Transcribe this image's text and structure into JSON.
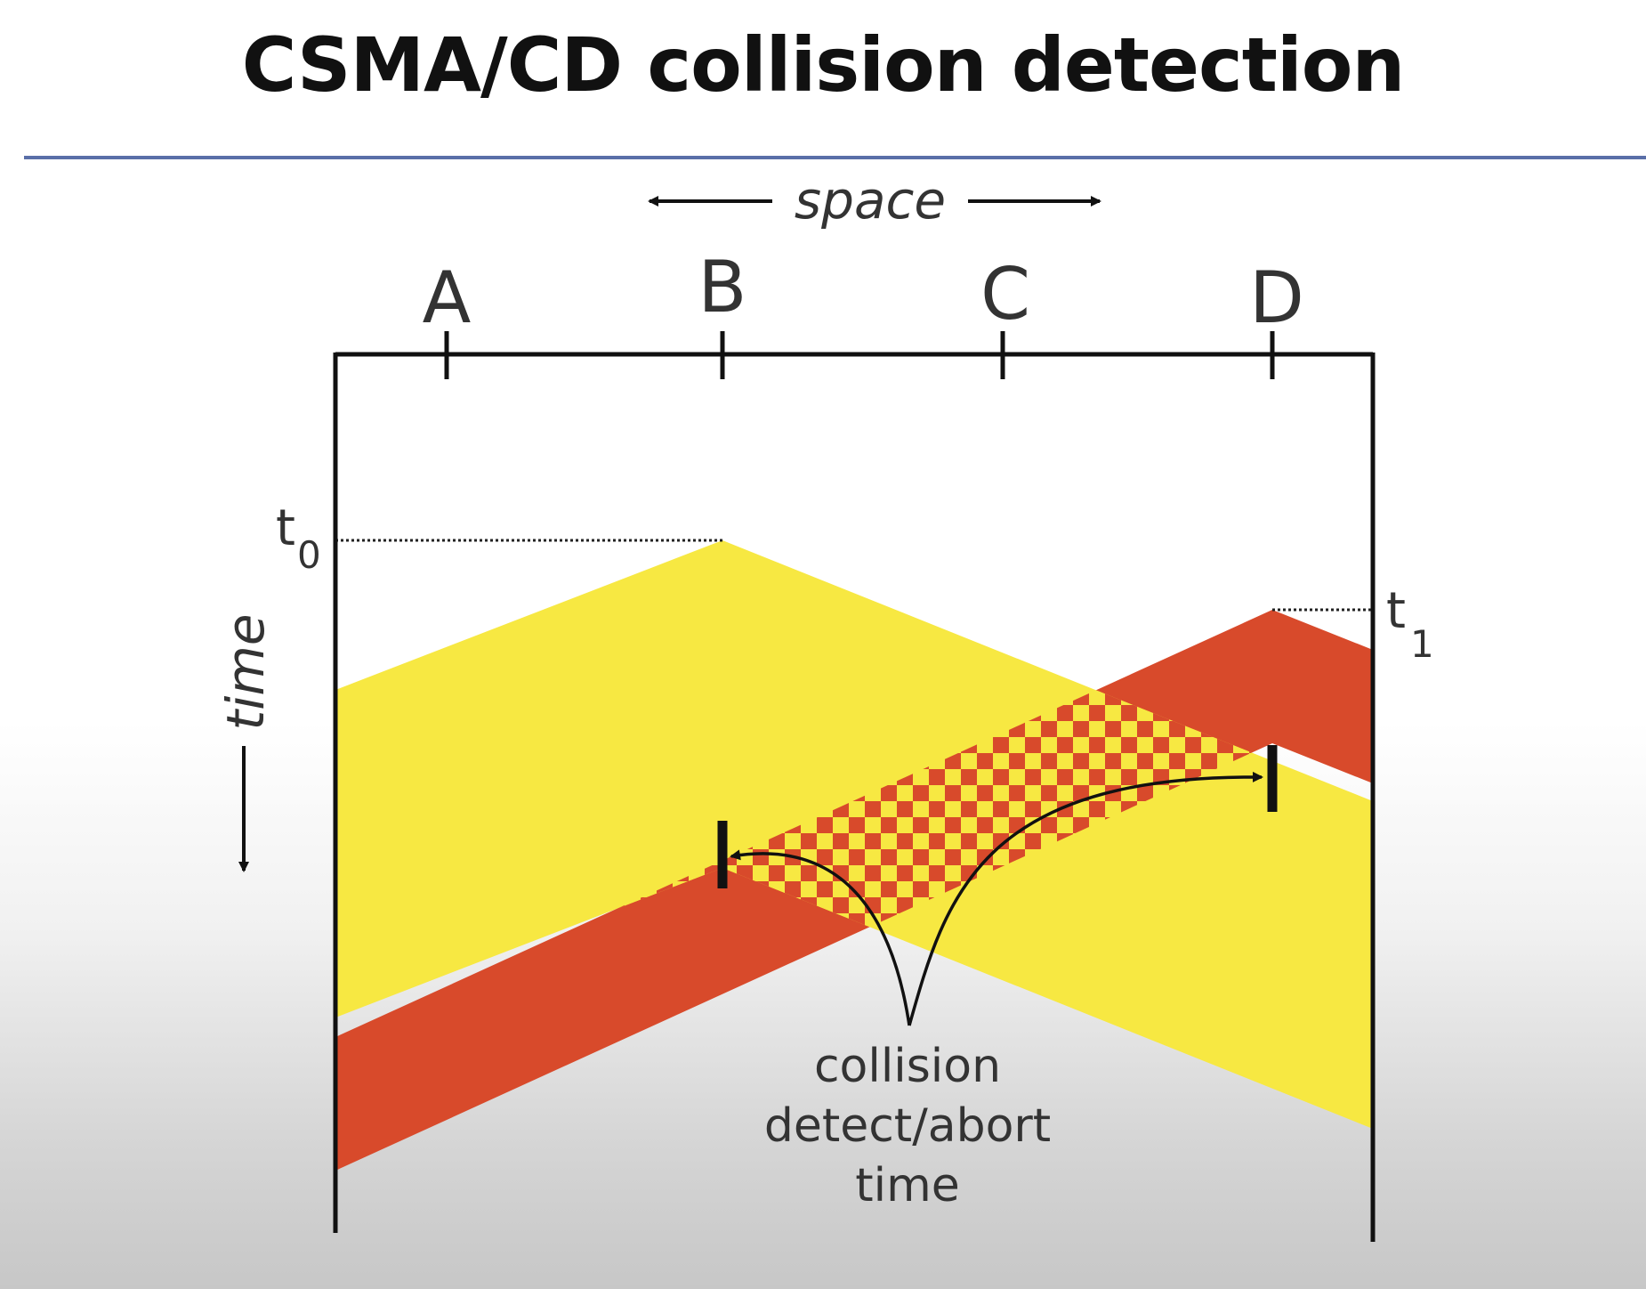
{
  "slide": {
    "title": "CSMA/CD collision detection"
  },
  "diagram": {
    "space_label": "space",
    "time_label": "time",
    "nodes": [
      {
        "label": "A",
        "color": "#1d1d6e"
      },
      {
        "label": "B",
        "color": "#f4ea3a"
      },
      {
        "label": "C",
        "color": "#1e7a56"
      },
      {
        "label": "D",
        "color": "#c8402a"
      }
    ],
    "t0_label": "t",
    "t0_sub": "0",
    "t1_label": "t",
    "t1_sub": "1",
    "annotation": [
      "collision",
      "detect/abort",
      "time"
    ],
    "colors": {
      "yellow_transmission": "#f7e842",
      "red_transmission": "#d84a2b",
      "axis": "#111111",
      "title_rule": "#5a6fa8"
    }
  }
}
